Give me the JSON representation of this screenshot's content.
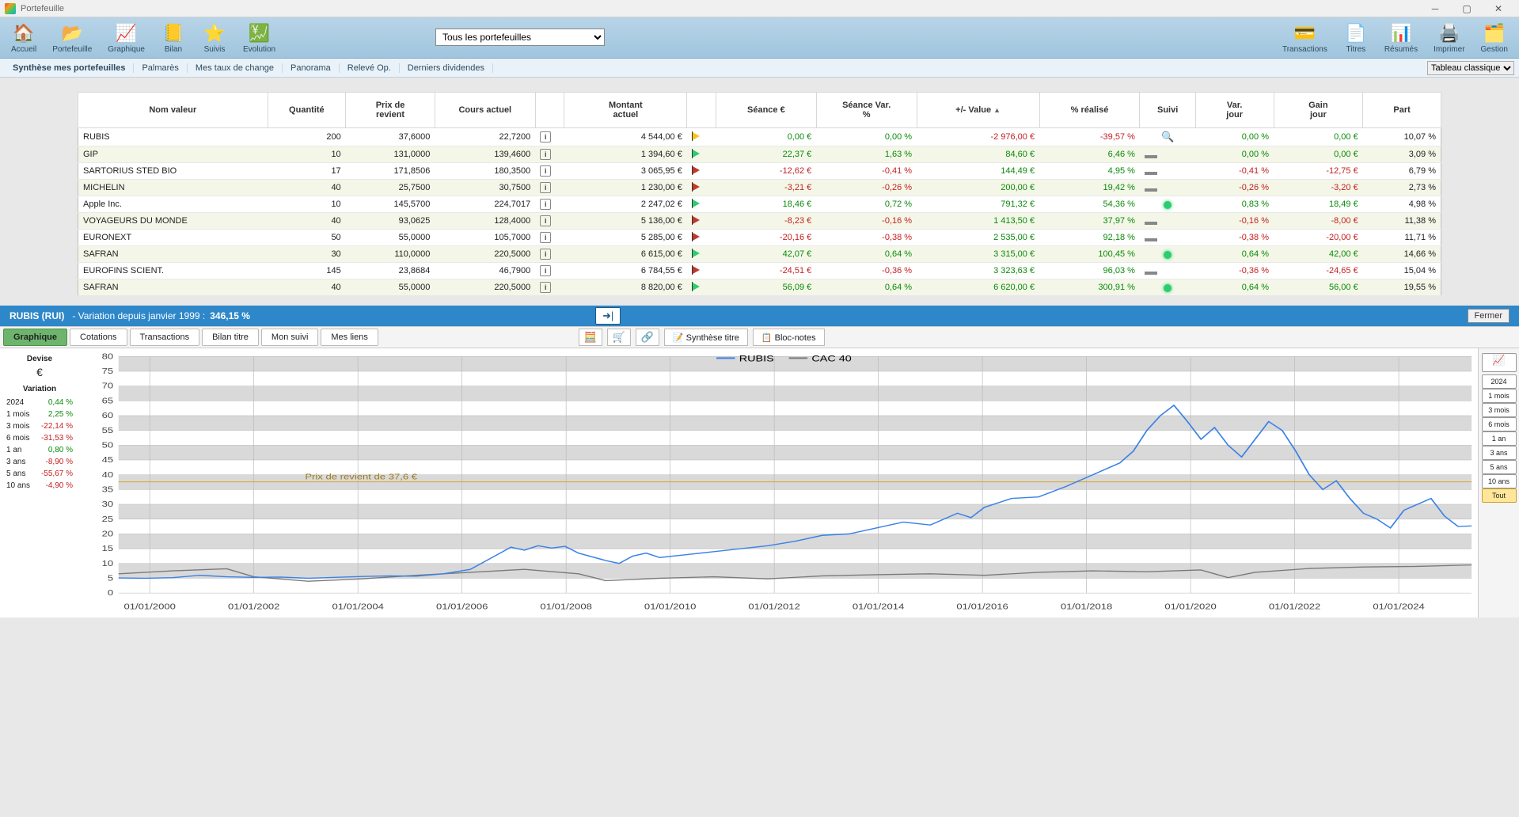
{
  "window_title": "Portefeuille",
  "toolbar": {
    "left": [
      {
        "label": "Accueil",
        "icon": "🏠"
      },
      {
        "label": "Portefeuille",
        "icon": "📂"
      },
      {
        "label": "Graphique",
        "icon": "📈"
      },
      {
        "label": "Bilan",
        "icon": "📒"
      },
      {
        "label": "Suivis",
        "icon": "⭐"
      },
      {
        "label": "Evolution",
        "icon": "💹"
      }
    ],
    "right": [
      {
        "label": "Transactions",
        "icon": "💳"
      },
      {
        "label": "Titres",
        "icon": "📄"
      },
      {
        "label": "Résumés",
        "icon": "📊"
      },
      {
        "label": "Imprimer",
        "icon": "🖨️"
      },
      {
        "label": "Gestion",
        "icon": "🗂️"
      }
    ],
    "dropdown_value": "Tous les portefeuilles"
  },
  "subnav": {
    "items": [
      "Synthèse mes portefeuilles",
      "Palmarès",
      "Mes taux de change",
      "Panorama",
      "Relevé Op.",
      "Derniers dividendes"
    ],
    "right_dropdown": "Tableau classique"
  },
  "table": {
    "columns": [
      "Nom valeur",
      "Quantité",
      "Prix de\nrevient",
      "Cours actuel",
      "",
      "Montant\nactuel",
      "",
      "Séance €",
      "Séance Var.\n%",
      "+/- Value",
      "% réalisé",
      "Suivi",
      "Var.\njour",
      "Gain\njour",
      "Part"
    ],
    "sort_col_index": 9,
    "rows": [
      {
        "name": "RUBIS",
        "qty": "200",
        "prix": "37,6000",
        "cours": "22,7200",
        "mont": "4 544,00 €",
        "flag": "y",
        "seance": "0,00 €",
        "seance_c": "pos",
        "svar": "0,00 %",
        "svar_c": "pos",
        "pmv": "-2 976,00 €",
        "pmv_c": "neg",
        "real": "-39,57 %",
        "real_c": "neg",
        "suivi": "eye",
        "vj": "0,00 %",
        "vj_c": "pos",
        "gj": "0,00 €",
        "gj_c": "pos",
        "part": "10,07 %"
      },
      {
        "name": "GIP",
        "qty": "10",
        "prix": "131,0000",
        "cours": "139,4600",
        "mont": "1 394,60 €",
        "flag": "g",
        "seance": "22,37 €",
        "seance_c": "pos",
        "svar": "1,63 %",
        "svar_c": "pos",
        "pmv": "84,60 €",
        "pmv_c": "pos",
        "real": "6,46 %",
        "real_c": "pos",
        "suivi": "eq",
        "vj": "0,00 %",
        "vj_c": "pos",
        "gj": "0,00 €",
        "gj_c": "pos",
        "part": "3,09 %"
      },
      {
        "name": "SARTORIUS STED BIO",
        "qty": "17",
        "prix": "171,8506",
        "cours": "180,3500",
        "mont": "3 065,95 €",
        "flag": "r",
        "seance": "-12,62 €",
        "seance_c": "neg",
        "svar": "-0,41 %",
        "svar_c": "neg",
        "pmv": "144,49 €",
        "pmv_c": "pos",
        "real": "4,95 %",
        "real_c": "pos",
        "suivi": "eq",
        "vj": "-0,41 %",
        "vj_c": "neg",
        "gj": "-12,75 €",
        "gj_c": "neg",
        "part": "6,79 %"
      },
      {
        "name": "MICHELIN",
        "qty": "40",
        "prix": "25,7500",
        "cours": "30,7500",
        "mont": "1 230,00 €",
        "flag": "r",
        "seance": "-3,21 €",
        "seance_c": "neg",
        "svar": "-0,26 %",
        "svar_c": "neg",
        "pmv": "200,00 €",
        "pmv_c": "pos",
        "real": "19,42 %",
        "real_c": "pos",
        "suivi": "eq",
        "vj": "-0,26 %",
        "vj_c": "neg",
        "gj": "-3,20 €",
        "gj_c": "neg",
        "part": "2,73 %"
      },
      {
        "name": "Apple Inc.",
        "qty": "10",
        "prix": "145,5700",
        "cours": "224,7017",
        "mont": "2 247,02 €",
        "flag": "g",
        "seance": "18,46 €",
        "seance_c": "pos",
        "svar": "0,72 %",
        "svar_c": "pos",
        "pmv": "791,32 €",
        "pmv_c": "pos",
        "real": "54,36 %",
        "real_c": "pos",
        "suivi": "bulb",
        "vj": "0,83 %",
        "vj_c": "pos",
        "gj": "18,49 €",
        "gj_c": "pos",
        "part": "4,98 %"
      },
      {
        "name": "VOYAGEURS DU MONDE",
        "qty": "40",
        "prix": "93,0625",
        "cours": "128,4000",
        "mont": "5 136,00 €",
        "flag": "r",
        "seance": "-8,23 €",
        "seance_c": "neg",
        "svar": "-0,16 %",
        "svar_c": "neg",
        "pmv": "1 413,50 €",
        "pmv_c": "pos",
        "real": "37,97 %",
        "real_c": "pos",
        "suivi": "eq",
        "vj": "-0,16 %",
        "vj_c": "neg",
        "gj": "-8,00 €",
        "gj_c": "neg",
        "part": "11,38 %"
      },
      {
        "name": "EURONEXT",
        "qty": "50",
        "prix": "55,0000",
        "cours": "105,7000",
        "mont": "5 285,00 €",
        "flag": "r",
        "seance": "-20,16 €",
        "seance_c": "neg",
        "svar": "-0,38 %",
        "svar_c": "neg",
        "pmv": "2 535,00 €",
        "pmv_c": "pos",
        "real": "92,18 %",
        "real_c": "pos",
        "suivi": "eq",
        "vj": "-0,38 %",
        "vj_c": "neg",
        "gj": "-20,00 €",
        "gj_c": "neg",
        "part": "11,71 %"
      },
      {
        "name": "SAFRAN",
        "qty": "30",
        "prix": "110,0000",
        "cours": "220,5000",
        "mont": "6 615,00 €",
        "flag": "g",
        "seance": "42,07 €",
        "seance_c": "pos",
        "svar": "0,64 %",
        "svar_c": "pos",
        "pmv": "3 315,00 €",
        "pmv_c": "pos",
        "real": "100,45 %",
        "real_c": "pos",
        "suivi": "bulb",
        "vj": "0,64 %",
        "vj_c": "pos",
        "gj": "42,00 €",
        "gj_c": "pos",
        "part": "14,66 %"
      },
      {
        "name": "EUROFINS SCIENT.",
        "qty": "145",
        "prix": "23,8684",
        "cours": "46,7900",
        "mont": "6 784,55 €",
        "flag": "r",
        "seance": "-24,51 €",
        "seance_c": "neg",
        "svar": "-0,36 %",
        "svar_c": "neg",
        "pmv": "3 323,63 €",
        "pmv_c": "pos",
        "real": "96,03 %",
        "real_c": "pos",
        "suivi": "eq",
        "vj": "-0,36 %",
        "vj_c": "neg",
        "gj": "-24,65 €",
        "gj_c": "neg",
        "part": "15,04 %"
      },
      {
        "name": "SAFRAN",
        "qty": "40",
        "prix": "55,0000",
        "cours": "220,5000",
        "mont": "8 820,00 €",
        "flag": "g",
        "seance": "56,09 €",
        "seance_c": "pos",
        "svar": "0,64 %",
        "svar_c": "pos",
        "pmv": "6 620,00 €",
        "pmv_c": "pos",
        "real": "300,91 %",
        "real_c": "pos",
        "suivi": "bulb",
        "vj": "0,64 %",
        "vj_c": "pos",
        "gj": "56,00 €",
        "gj_c": "pos",
        "part": "19,55 %"
      }
    ]
  },
  "chart_panel": {
    "symbol": "RUBIS (RUI)",
    "variation_label": "- Variation depuis janvier 1999 :",
    "variation_value": "346,15 %",
    "close_label": "Fermer",
    "tabs": [
      "Graphique",
      "Cotations",
      "Transactions",
      "Bilan titre",
      "Mon suivi",
      "Mes liens"
    ],
    "active_tab": 0,
    "tools": [
      {
        "icon": "🧮"
      },
      {
        "icon": "🛒"
      },
      {
        "icon": "🔗"
      },
      {
        "icon": "📝",
        "label": "Synthèse titre"
      },
      {
        "icon": "📋",
        "label": "Bloc-notes"
      }
    ],
    "left": {
      "devise_hdr": "Devise",
      "currency": "€",
      "var_hdr": "Variation",
      "rows": [
        {
          "k": "2024",
          "v": "0,44 %",
          "c": "pos"
        },
        {
          "k": "1 mois",
          "v": "2,25 %",
          "c": "pos"
        },
        {
          "k": "3 mois",
          "v": "-22,14 %",
          "c": "neg"
        },
        {
          "k": "6 mois",
          "v": "-31,53 %",
          "c": "neg"
        },
        {
          "k": "1 an",
          "v": "0,80 %",
          "c": "pos"
        },
        {
          "k": "3 ans",
          "v": "-8,90 %",
          "c": "neg"
        },
        {
          "k": "5 ans",
          "v": "-55,67 %",
          "c": "neg"
        },
        {
          "k": "10 ans",
          "v": "-4,90 %",
          "c": "neg"
        }
      ]
    },
    "right_buttons": [
      "2024",
      "1 mois",
      "3 mois",
      "6 mois",
      "1 an",
      "3 ans",
      "5 ans",
      "10 ans",
      "Tout"
    ],
    "right_active": 8,
    "chart": {
      "type": "line",
      "series": [
        {
          "name": "RUBIS",
          "color": "#3b82e6"
        },
        {
          "name": "CAC 40",
          "color": "#7a7a7a"
        }
      ],
      "ymin": 0,
      "ymax": 80,
      "ytick_step": 5,
      "xlabels": [
        "01/01/2000",
        "01/01/2002",
        "01/01/2004",
        "01/01/2006",
        "01/01/2008",
        "01/01/2010",
        "01/01/2012",
        "01/01/2014",
        "01/01/2016",
        "01/01/2018",
        "01/01/2020",
        "01/01/2022",
        "01/01/2024"
      ],
      "prix_revient_line": {
        "y": 37.6,
        "label": "Prix de revient de 37,6 €"
      },
      "background": "#ffffff",
      "band_color": "#d9d9d9",
      "grid_color": "#b8b8b8",
      "rubis_points": [
        [
          0,
          5.1
        ],
        [
          2,
          5.0
        ],
        [
          4,
          5.2
        ],
        [
          6,
          6.0
        ],
        [
          8,
          5.5
        ],
        [
          10,
          5.3
        ],
        [
          12,
          5.4
        ],
        [
          14,
          5.0
        ],
        [
          16,
          5.3
        ],
        [
          18,
          5.6
        ],
        [
          20,
          5.8
        ],
        [
          22,
          5.7
        ],
        [
          24,
          6.5
        ],
        [
          26,
          8.0
        ],
        [
          28,
          13.0
        ],
        [
          29,
          15.5
        ],
        [
          30,
          14.5
        ],
        [
          31,
          16.0
        ],
        [
          32,
          15.2
        ],
        [
          33,
          15.8
        ],
        [
          34,
          13.5
        ],
        [
          36,
          11.0
        ],
        [
          37,
          10.0
        ],
        [
          38,
          12.5
        ],
        [
          39,
          13.5
        ],
        [
          40,
          12.0
        ],
        [
          42,
          13.0
        ],
        [
          44,
          14.0
        ],
        [
          46,
          15.0
        ],
        [
          48,
          16.0
        ],
        [
          50,
          17.5
        ],
        [
          52,
          19.5
        ],
        [
          54,
          20.0
        ],
        [
          56,
          22.0
        ],
        [
          58,
          24.0
        ],
        [
          60,
          23.0
        ],
        [
          62,
          27.0
        ],
        [
          63,
          25.5
        ],
        [
          64,
          29.0
        ],
        [
          66,
          32.0
        ],
        [
          68,
          32.5
        ],
        [
          70,
          36.0
        ],
        [
          72,
          40.0
        ],
        [
          74,
          44.0
        ],
        [
          75,
          48.0
        ],
        [
          76,
          55.0
        ],
        [
          77,
          60.0
        ],
        [
          78,
          63.5
        ],
        [
          79,
          58.0
        ],
        [
          80,
          52.0
        ],
        [
          81,
          56.0
        ],
        [
          82,
          50.0
        ],
        [
          83,
          46.0
        ],
        [
          84,
          52.0
        ],
        [
          85,
          58.0
        ],
        [
          86,
          55.0
        ],
        [
          87,
          48.0
        ],
        [
          88,
          40.0
        ],
        [
          89,
          35.0
        ],
        [
          90,
          38.0
        ],
        [
          91,
          32.0
        ],
        [
          92,
          27.0
        ],
        [
          93,
          25.0
        ],
        [
          94,
          22.0
        ],
        [
          95,
          28.0
        ],
        [
          96,
          30.0
        ],
        [
          97,
          32.0
        ],
        [
          98,
          26.0
        ],
        [
          99,
          22.5
        ],
        [
          100,
          22.7
        ]
      ],
      "cac_points": [
        [
          0,
          6.5
        ],
        [
          4,
          7.5
        ],
        [
          8,
          8.2
        ],
        [
          10,
          5.5
        ],
        [
          14,
          4.0
        ],
        [
          18,
          4.8
        ],
        [
          22,
          6.0
        ],
        [
          26,
          7.0
        ],
        [
          30,
          8.0
        ],
        [
          34,
          6.5
        ],
        [
          36,
          4.2
        ],
        [
          40,
          5.0
        ],
        [
          44,
          5.5
        ],
        [
          48,
          4.8
        ],
        [
          52,
          5.8
        ],
        [
          56,
          6.2
        ],
        [
          60,
          6.5
        ],
        [
          64,
          6.0
        ],
        [
          68,
          7.0
        ],
        [
          72,
          7.5
        ],
        [
          76,
          7.2
        ],
        [
          80,
          7.8
        ],
        [
          82,
          5.2
        ],
        [
          84,
          7.0
        ],
        [
          88,
          8.3
        ],
        [
          92,
          8.8
        ],
        [
          96,
          9.0
        ],
        [
          100,
          9.5
        ]
      ]
    }
  }
}
